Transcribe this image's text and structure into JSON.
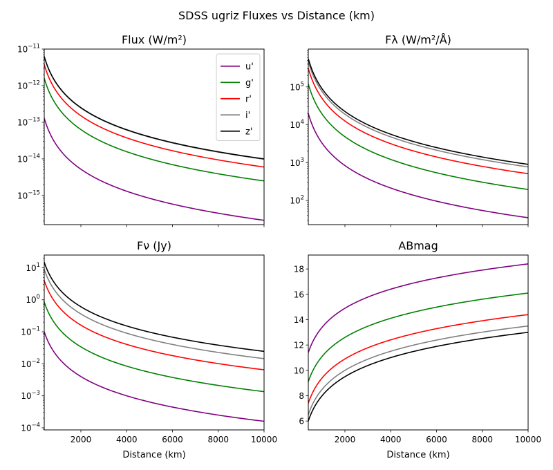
{
  "figure": {
    "suptitle": "SDSS ugriz Fluxes vs Distance (km)"
  },
  "chart_data": [
    {
      "type": "line",
      "title": "Flux (W/m²)",
      "xlabel": "",
      "ylabel": "",
      "yscale": "log",
      "xlim": [
        400,
        10000
      ],
      "ylim": [
        1.6e-16,
        1e-11
      ],
      "xticks": [
        2000,
        4000,
        6000,
        8000,
        10000
      ],
      "xtick_labels_visible": false,
      "yticks": [
        1e-15,
        1e-14,
        1e-13,
        1e-12,
        1e-11
      ],
      "ytick_labels": [
        [
          "10",
          "−15"
        ],
        [
          "10",
          "−14"
        ],
        [
          "10",
          "−13"
        ],
        [
          "10",
          "−12"
        ],
        [
          "10",
          "−11"
        ]
      ],
      "legend": {
        "position": "top-right",
        "entries": [
          "u'",
          "g'",
          "r'",
          "i'",
          "z'"
        ]
      },
      "x": [
        400,
        10000
      ],
      "series": [
        {
          "name": "u'",
          "color": "#800080",
          "values": [
            1.3e-13,
            2.1e-16
          ]
        },
        {
          "name": "g'",
          "color": "#008000",
          "values": [
            1.6e-12,
            2.5e-15
          ]
        },
        {
          "name": "r'",
          "color": "#ff0000",
          "values": [
            3.8e-12,
            6e-15
          ]
        },
        {
          "name": "i'",
          "color": "#808080",
          "values": [
            6.2e-12,
            9.8e-15
          ]
        },
        {
          "name": "z'",
          "color": "#000000",
          "values": [
            6.3e-12,
            1e-14
          ]
        }
      ]
    },
    {
      "type": "line",
      "title": "Fλ (W/m²/Å)",
      "xlabel": "",
      "ylabel": "",
      "yscale": "log",
      "xlim": [
        400,
        10000
      ],
      "ylim": [
        23,
        1000000.0
      ],
      "xticks": [
        2000,
        4000,
        6000,
        8000,
        10000
      ],
      "xtick_labels_visible": false,
      "yticks": [
        100,
        1000,
        10000,
        100000
      ],
      "ytick_labels": [
        [
          "10",
          "2"
        ],
        [
          "10",
          "3"
        ],
        [
          "10",
          "4"
        ],
        [
          "10",
          "5"
        ]
      ],
      "x": [
        400,
        10000
      ],
      "series": [
        {
          "name": "u'",
          "color": "#800080",
          "values": [
            20000,
            35
          ]
        },
        {
          "name": "g'",
          "color": "#008000",
          "values": [
            120000,
            195
          ]
        },
        {
          "name": "r'",
          "color": "#ff0000",
          "values": [
            310000,
            510
          ]
        },
        {
          "name": "i'",
          "color": "#808080",
          "values": [
            470000,
            770
          ]
        },
        {
          "name": "z'",
          "color": "#000000",
          "values": [
            560000,
            900
          ]
        }
      ]
    },
    {
      "type": "line",
      "title": "Fν (Jy)",
      "xlabel": "Distance (km)",
      "ylabel": "",
      "yscale": "log",
      "xlim": [
        400,
        10000
      ],
      "ylim": [
        8.6e-05,
        25
      ],
      "xticks": [
        2000,
        4000,
        6000,
        8000,
        10000
      ],
      "xtick_labels_visible": true,
      "yticks": [
        0.0001,
        0.001,
        0.01,
        0.1,
        1,
        10
      ],
      "ytick_labels": [
        [
          "10",
          "−4"
        ],
        [
          "10",
          "−3"
        ],
        [
          "10",
          "−2"
        ],
        [
          "10",
          "−1"
        ],
        [
          "10",
          "0"
        ],
        [
          "10",
          "1"
        ]
      ],
      "x": [
        400,
        10000
      ],
      "series": [
        {
          "name": "u'",
          "color": "#800080",
          "values": [
            0.1,
            0.00016
          ]
        },
        {
          "name": "g'",
          "color": "#008000",
          "values": [
            0.85,
            0.00135
          ]
        },
        {
          "name": "r'",
          "color": "#ff0000",
          "values": [
            4.0,
            0.0065
          ]
        },
        {
          "name": "i'",
          "color": "#808080",
          "values": [
            9.0,
            0.0145
          ]
        },
        {
          "name": "z'",
          "color": "#000000",
          "values": [
            15.0,
            0.0245
          ]
        }
      ]
    },
    {
      "type": "line",
      "title": "ABmag",
      "xlabel": "Distance (km)",
      "ylabel": "",
      "yscale": "linear",
      "xlim": [
        400,
        10000
      ],
      "ylim": [
        5.3,
        19.1
      ],
      "xticks": [
        2000,
        4000,
        6000,
        8000,
        10000
      ],
      "xtick_labels_visible": true,
      "yticks": [
        6,
        8,
        10,
        12,
        14,
        16,
        18
      ],
      "ytick_labels": [
        [
          "6",
          ""
        ],
        [
          "8",
          ""
        ],
        [
          "10",
          ""
        ],
        [
          "12",
          ""
        ],
        [
          "14",
          ""
        ],
        [
          "16",
          ""
        ],
        [
          "18",
          ""
        ]
      ],
      "x": [
        400,
        10000
      ],
      "series": [
        {
          "name": "u'",
          "color": "#800080",
          "values": [
            11.4,
            18.4
          ]
        },
        {
          "name": "g'",
          "color": "#008000",
          "values": [
            9.1,
            16.1
          ]
        },
        {
          "name": "r'",
          "color": "#ff0000",
          "values": [
            7.4,
            14.4
          ]
        },
        {
          "name": "i'",
          "color": "#808080",
          "values": [
            6.5,
            13.5
          ]
        },
        {
          "name": "z'",
          "color": "#000000",
          "values": [
            6.0,
            13.0
          ]
        }
      ]
    }
  ]
}
